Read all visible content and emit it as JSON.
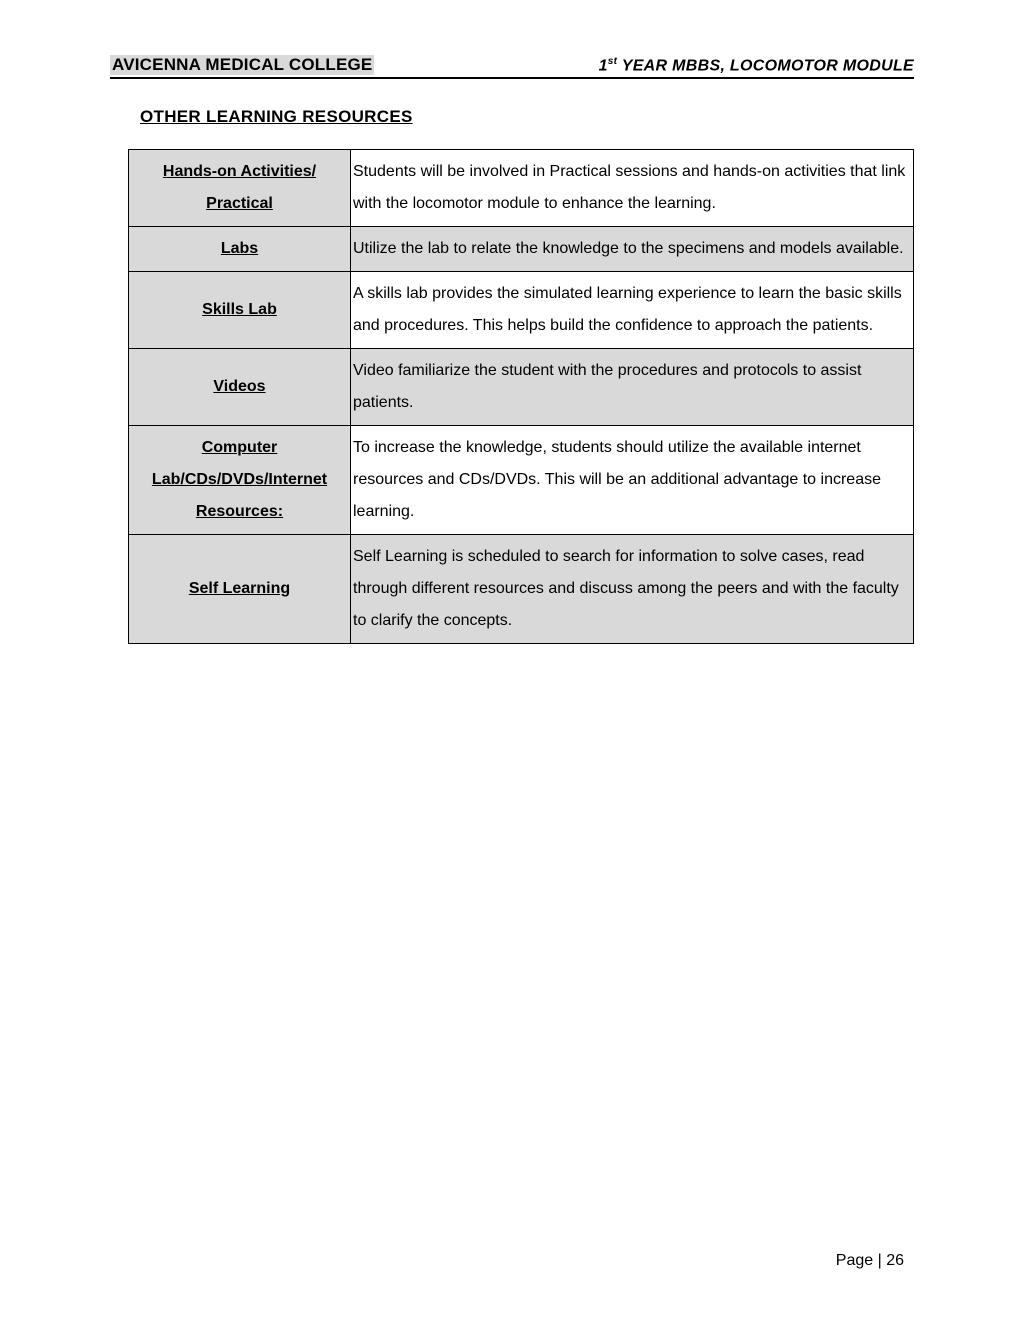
{
  "header": {
    "college": "AVICENNA MEDICAL COLLEGE",
    "module_prefix": "1",
    "module_super": "st",
    "module_rest": " YEAR MBBS, LOCOMOTOR MODULE"
  },
  "section_title": "OTHER LEARNING RESOURCES",
  "rows": [
    {
      "label": "Hands-on Activities/ Practical",
      "desc": "Students will be involved in Practical sessions and hands-on activities that link with the locomotor module to enhance the learning."
    },
    {
      "label": "Labs",
      "desc": "Utilize the lab to relate the knowledge to the specimens and models available."
    },
    {
      "label": "Skills Lab",
      "desc": "A skills lab provides the simulated learning experience to learn the basic skills and procedures. This helps build the confidence to approach the patients."
    },
    {
      "label": "Videos",
      "desc": "Video familiarize the student with the procedures and protocols to assist patients."
    },
    {
      "label": "Computer Lab/CDs/DVDs/Internet Resources:",
      "desc": "To increase the knowledge, students should utilize the available internet resources and CDs/DVDs. This will be an additional advantage to increase learning."
    },
    {
      "label": "Self Learning",
      "desc": "Self Learning is scheduled to search for information to solve cases, read through different resources and discuss among the peers and with the faculty to clarify the concepts."
    }
  ],
  "page_number_label": "Page |  26",
  "colors": {
    "shade": "#d9d9d9",
    "text": "#000000",
    "bg": "#ffffff"
  }
}
